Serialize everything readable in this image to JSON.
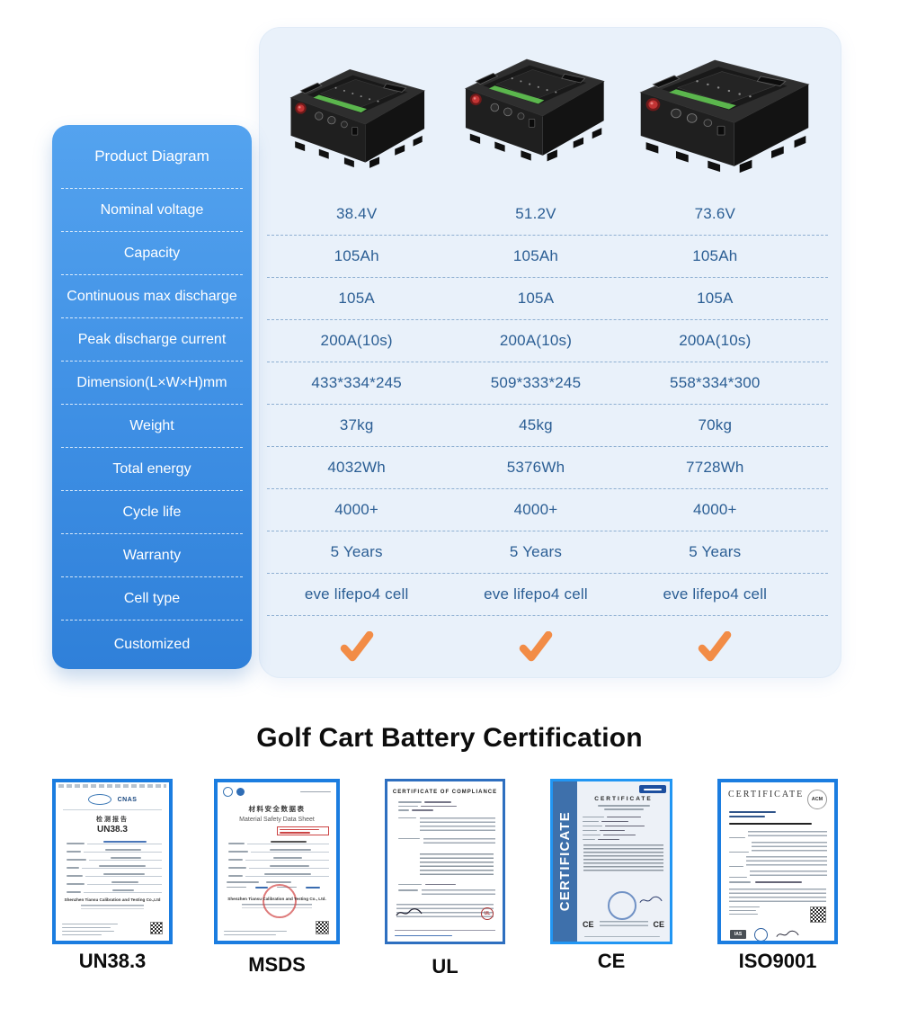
{
  "colors": {
    "sidebar_blue": "#3f8fe4",
    "panel_bg": "#e9f1fa",
    "value_text": "#2b5e94",
    "check_orange": "#f28c46",
    "cert_border_blue": "#1b7de0"
  },
  "spec_table": {
    "header_label": "Product Diagram",
    "columns": [
      "38.4V model",
      "51.2V model",
      "73.6V model"
    ],
    "rows": [
      {
        "label": "Nominal voltage",
        "values": [
          "38.4V",
          "51.2V",
          "73.6V"
        ]
      },
      {
        "label": "Capacity",
        "values": [
          "105Ah",
          "105Ah",
          "105Ah"
        ]
      },
      {
        "label": "Continuous max discharge",
        "values": [
          "105A",
          "105A",
          "105A"
        ]
      },
      {
        "label": "Peak discharge current",
        "values": [
          "200A(10s)",
          "200A(10s)",
          "200A(10s)"
        ]
      },
      {
        "label": "Dimension(L×W×H)mm",
        "values": [
          "433*334*245",
          "509*333*245",
          "558*334*300"
        ]
      },
      {
        "label": "Weight",
        "values": [
          "37kg",
          "45kg",
          "70kg"
        ]
      },
      {
        "label": "Total energy",
        "values": [
          "4032Wh",
          "5376Wh",
          "7728Wh"
        ]
      },
      {
        "label": "Cycle life",
        "values": [
          "4000+",
          "4000+",
          "4000+"
        ]
      },
      {
        "label": "Warranty",
        "values": [
          "5 Years",
          "5 Years",
          "5 Years"
        ]
      },
      {
        "label": "Cell type",
        "values": [
          "eve lifepo4 cell",
          "eve lifepo4 cell",
          "eve lifepo4 cell"
        ]
      },
      {
        "label": "Customized",
        "type": "check",
        "values": [
          "check",
          "check",
          "check"
        ],
        "check_glyph": "✔"
      }
    ]
  },
  "certification": {
    "title": "Golf Cart Battery Certification",
    "un383": {
      "caption": "UN38.3",
      "doc_title_cn": "检测报告",
      "doc_code": "UN38.3",
      "company": "Shenzhen Tiansu Calibration and Testing Co.,Ltd",
      "logo": "CNAS"
    },
    "msds": {
      "caption": "MSDS",
      "doc_title_cn": "材料安全数据表",
      "doc_title_en": "Material Safety Data Sheet",
      "company": "Shenzhen Tiansu Calibration and Testing Co., Ltd."
    },
    "ul": {
      "caption": "UL",
      "doc_title": "CERTIFICATE OF COMPLIANCE"
    },
    "ce": {
      "caption": "CE",
      "band_text": "CERTIFICATE",
      "doc_title": "CERTIFICATE",
      "mark_left": "CE",
      "mark_right": "CE"
    },
    "iso": {
      "caption": "ISO9001",
      "doc_title": "CERTIFICATE",
      "badge": "ACM",
      "ias": "IAS"
    }
  }
}
